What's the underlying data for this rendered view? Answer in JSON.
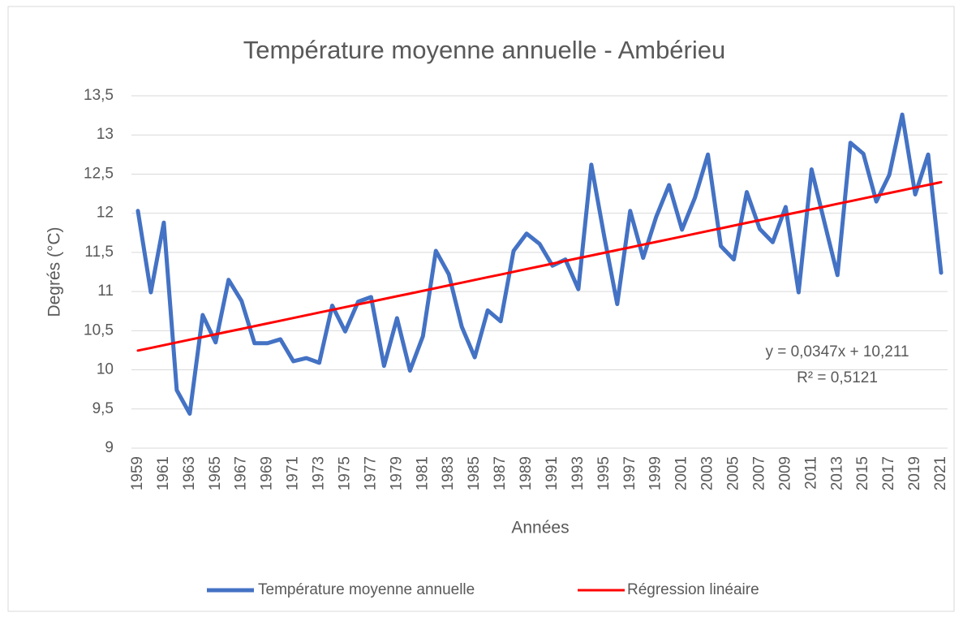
{
  "chart_data": {
    "type": "line",
    "title": "Température moyenne annuelle - Ambérieu",
    "y_label": "Degrés (°C)",
    "x_label": "Années",
    "annotations": [
      "y = 0,0347x + 10,211",
      "R² = 0,5121"
    ],
    "categories": [
      "1959",
      null,
      "1961",
      null,
      "1963",
      null,
      "1965",
      null,
      "1967",
      null,
      "1969",
      null,
      "1971",
      null,
      "1973",
      null,
      "1975",
      null,
      "1977",
      null,
      "1979",
      null,
      "1981",
      null,
      "1983",
      null,
      "1985",
      null,
      "1987",
      null,
      "1989",
      null,
      "1991",
      null,
      "1993",
      null,
      "1995",
      null,
      "1997",
      null,
      "1999",
      null,
      "2001",
      null,
      "2003",
      null,
      "2005",
      null,
      "2007",
      null,
      "2009",
      null,
      "2011",
      null,
      "2013",
      null,
      "2015",
      null,
      "2017",
      null,
      "2019",
      null,
      "2021"
    ],
    "series": [
      {
        "name": "Température moyenne annuelle",
        "color": "#4472c4",
        "width": 5,
        "values": [
          12.03,
          10.99,
          11.88,
          9.74,
          9.44,
          10.7,
          10.35,
          11.15,
          10.88,
          10.34,
          10.34,
          10.39,
          10.11,
          10.15,
          10.09,
          10.82,
          10.49,
          10.87,
          10.93,
          10.05,
          10.66,
          9.99,
          10.43,
          11.52,
          11.22,
          10.55,
          10.16,
          10.76,
          10.62,
          11.52,
          11.74,
          11.61,
          11.33,
          11.41,
          11.03,
          12.62,
          11.7,
          10.84,
          12.03,
          11.43,
          11.95,
          12.36,
          11.79,
          12.2,
          12.75,
          11.58,
          11.41,
          12.27,
          11.8,
          11.63,
          12.08,
          10.99,
          12.56,
          11.88,
          11.21,
          12.9,
          12.76,
          12.15,
          12.49,
          13.26,
          12.24,
          12.75,
          11.24
        ]
      },
      {
        "name": "Régression linéaire",
        "color": "#ff0000",
        "width": 3,
        "values": [
          10.246,
          10.28,
          10.315,
          10.35,
          10.385,
          10.419,
          10.454,
          10.489,
          10.523,
          10.558,
          10.593,
          10.627,
          10.662,
          10.697,
          10.732,
          10.766,
          10.801,
          10.836,
          10.87,
          10.905,
          10.94,
          10.974,
          11.009,
          11.044,
          11.079,
          11.113,
          11.148,
          11.183,
          11.217,
          11.252,
          11.287,
          11.321,
          11.356,
          11.391,
          11.426,
          11.46,
          11.495,
          11.53,
          11.564,
          11.599,
          11.634,
          11.668,
          11.703,
          11.738,
          11.773,
          11.807,
          11.842,
          11.877,
          11.911,
          11.946,
          11.981,
          12.015,
          12.05,
          12.085,
          12.12,
          12.154,
          12.189,
          12.224,
          12.258,
          12.293,
          12.328,
          12.362,
          12.397
        ]
      }
    ],
    "ylim": [
      9,
      13.5
    ],
    "yticks": [
      9,
      {
        "value": 9.5,
        "label": "9,5"
      },
      10,
      {
        "value": 10.5,
        "label": "10,5"
      },
      11,
      {
        "value": 11.5,
        "label": "11,5"
      },
      12,
      {
        "value": 12.5,
        "label": "12,5"
      },
      13,
      {
        "value": 13.5,
        "label": "13,5"
      }
    ],
    "grid": true,
    "legend": "bottom"
  }
}
